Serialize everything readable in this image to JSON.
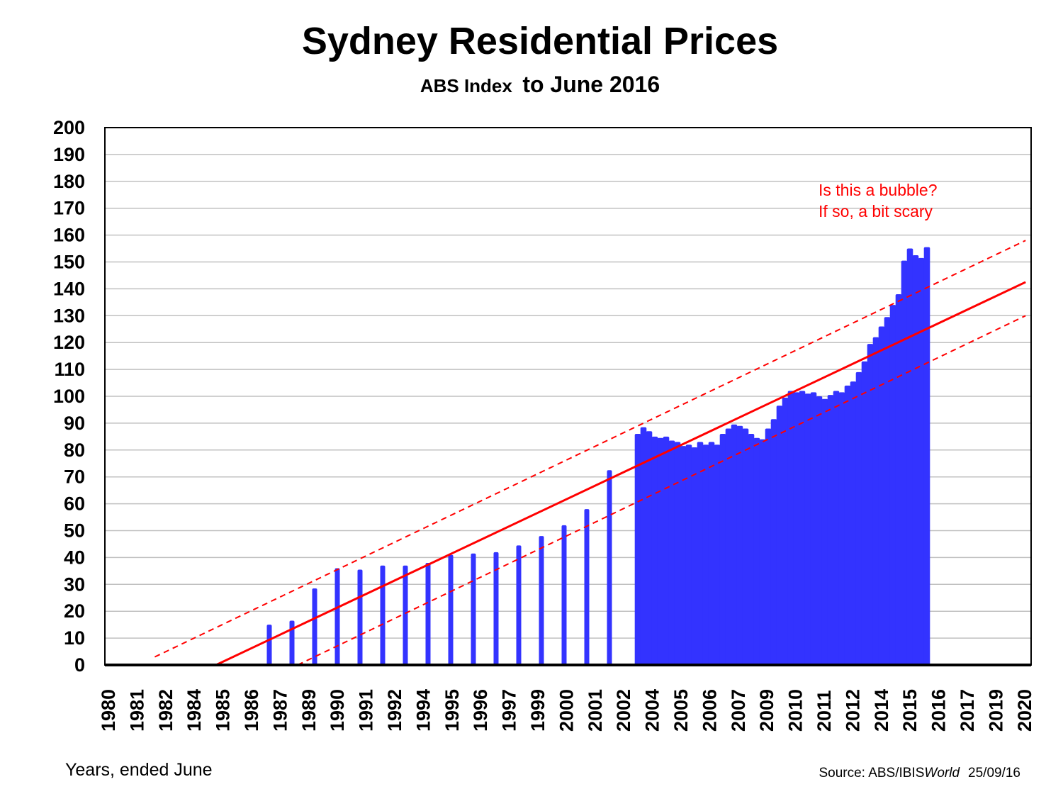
{
  "chart_data": {
    "type": "bar",
    "title": "Sydney Residential Prices",
    "subtitle_part1": "ABS Index",
    "subtitle_part2": "to June 2016",
    "xlabel": "Years, ended June",
    "source_prefix": "Source: ABS/IBIS",
    "source_italic": "World",
    "source_date": "25/09/16",
    "ylim": [
      0,
      200
    ],
    "xlim": [
      1980,
      2021
    ],
    "grid": true,
    "y_ticks": [
      "0",
      "10",
      "20",
      "30",
      "40",
      "50",
      "60",
      "70",
      "80",
      "90",
      "100",
      "110",
      "120",
      "130",
      "140",
      "150",
      "160",
      "170",
      "180",
      "190",
      "200"
    ],
    "x_tick_labels": [
      "1980",
      "1981",
      "1982",
      "1984",
      "1985",
      "1986",
      "1987",
      "1989",
      "1990",
      "1991",
      "1992",
      "1994",
      "1995",
      "1996",
      "1997",
      "1999",
      "2000",
      "2001",
      "2002",
      "2004",
      "2005",
      "2006",
      "2007",
      "2009",
      "2010",
      "2011",
      "2012",
      "2014",
      "2015",
      "2016",
      "2017",
      "2019",
      "2020"
    ],
    "bar_color": "#3333ff",
    "trend_color": "#ff0000",
    "annotation": [
      "Is this a bubble?",
      "If so, a bit scary"
    ],
    "annual": [
      [
        "1987-06",
        15
      ],
      [
        "1988-06",
        16.5
      ],
      [
        "1989-06",
        28.5
      ],
      [
        "1990-06",
        36
      ],
      [
        "1991-06",
        35.5
      ],
      [
        "1992-06",
        37
      ],
      [
        "1993-06",
        37
      ],
      [
        "1994-06",
        38
      ],
      [
        "1995-06",
        41
      ],
      [
        "1996-06",
        41.5
      ],
      [
        "1997-06",
        42
      ],
      [
        "1998-06",
        44.5
      ],
      [
        "1999-06",
        48
      ],
      [
        "2000-06",
        52
      ],
      [
        "2001-06",
        58
      ],
      [
        "2002-06",
        72.5
      ]
    ],
    "quarterly": [
      [
        "2003-09",
        86
      ],
      [
        "2003-12",
        88.5
      ],
      [
        "2004-03",
        87
      ],
      [
        "2004-06",
        85
      ],
      [
        "2004-09",
        84.5
      ],
      [
        "2004-12",
        85
      ],
      [
        "2005-03",
        83.5
      ],
      [
        "2005-06",
        83
      ],
      [
        "2005-09",
        81.5
      ],
      [
        "2005-12",
        82
      ],
      [
        "2006-03",
        81
      ],
      [
        "2006-06",
        83
      ],
      [
        "2006-09",
        82
      ],
      [
        "2006-12",
        83
      ],
      [
        "2007-03",
        82
      ],
      [
        "2007-06",
        86
      ],
      [
        "2007-09",
        88
      ],
      [
        "2007-12",
        89.5
      ],
      [
        "2008-03",
        89
      ],
      [
        "2008-06",
        88
      ],
      [
        "2008-09",
        86
      ],
      [
        "2008-12",
        84.5
      ],
      [
        "2009-03",
        84
      ],
      [
        "2009-06",
        88
      ],
      [
        "2009-09",
        91.5
      ],
      [
        "2009-12",
        96.5
      ],
      [
        "2010-03",
        99.5
      ],
      [
        "2010-06",
        102
      ],
      [
        "2010-09",
        101.5
      ],
      [
        "2010-12",
        102
      ],
      [
        "2011-03",
        101
      ],
      [
        "2011-06",
        101.5
      ],
      [
        "2011-09",
        100
      ],
      [
        "2011-12",
        99
      ],
      [
        "2012-03",
        100.5
      ],
      [
        "2012-06",
        102
      ],
      [
        "2012-09",
        101.5
      ],
      [
        "2012-12",
        104
      ],
      [
        "2013-03",
        105.5
      ],
      [
        "2013-06",
        109
      ],
      [
        "2013-09",
        113
      ],
      [
        "2013-12",
        119.5
      ],
      [
        "2014-03",
        122
      ],
      [
        "2014-06",
        126
      ],
      [
        "2014-09",
        129.5
      ],
      [
        "2014-12",
        134
      ],
      [
        "2015-03",
        138
      ],
      [
        "2015-06",
        150.5
      ],
      [
        "2015-09",
        155
      ],
      [
        "2015-12",
        152.5
      ],
      [
        "2016-03",
        151.5
      ],
      [
        "2016-06",
        155.5
      ]
    ],
    "trend_lines": [
      {
        "style": "solid",
        "from": [
          1984.9,
          0
        ],
        "to": [
          2020.6,
          142.5
        ]
      },
      {
        "style": "dashed",
        "from": [
          1982.2,
          3
        ],
        "to": [
          2020.6,
          158
        ]
      },
      {
        "style": "dashed",
        "from": [
          1988.5,
          0
        ],
        "to": [
          2020.6,
          130
        ]
      }
    ]
  }
}
